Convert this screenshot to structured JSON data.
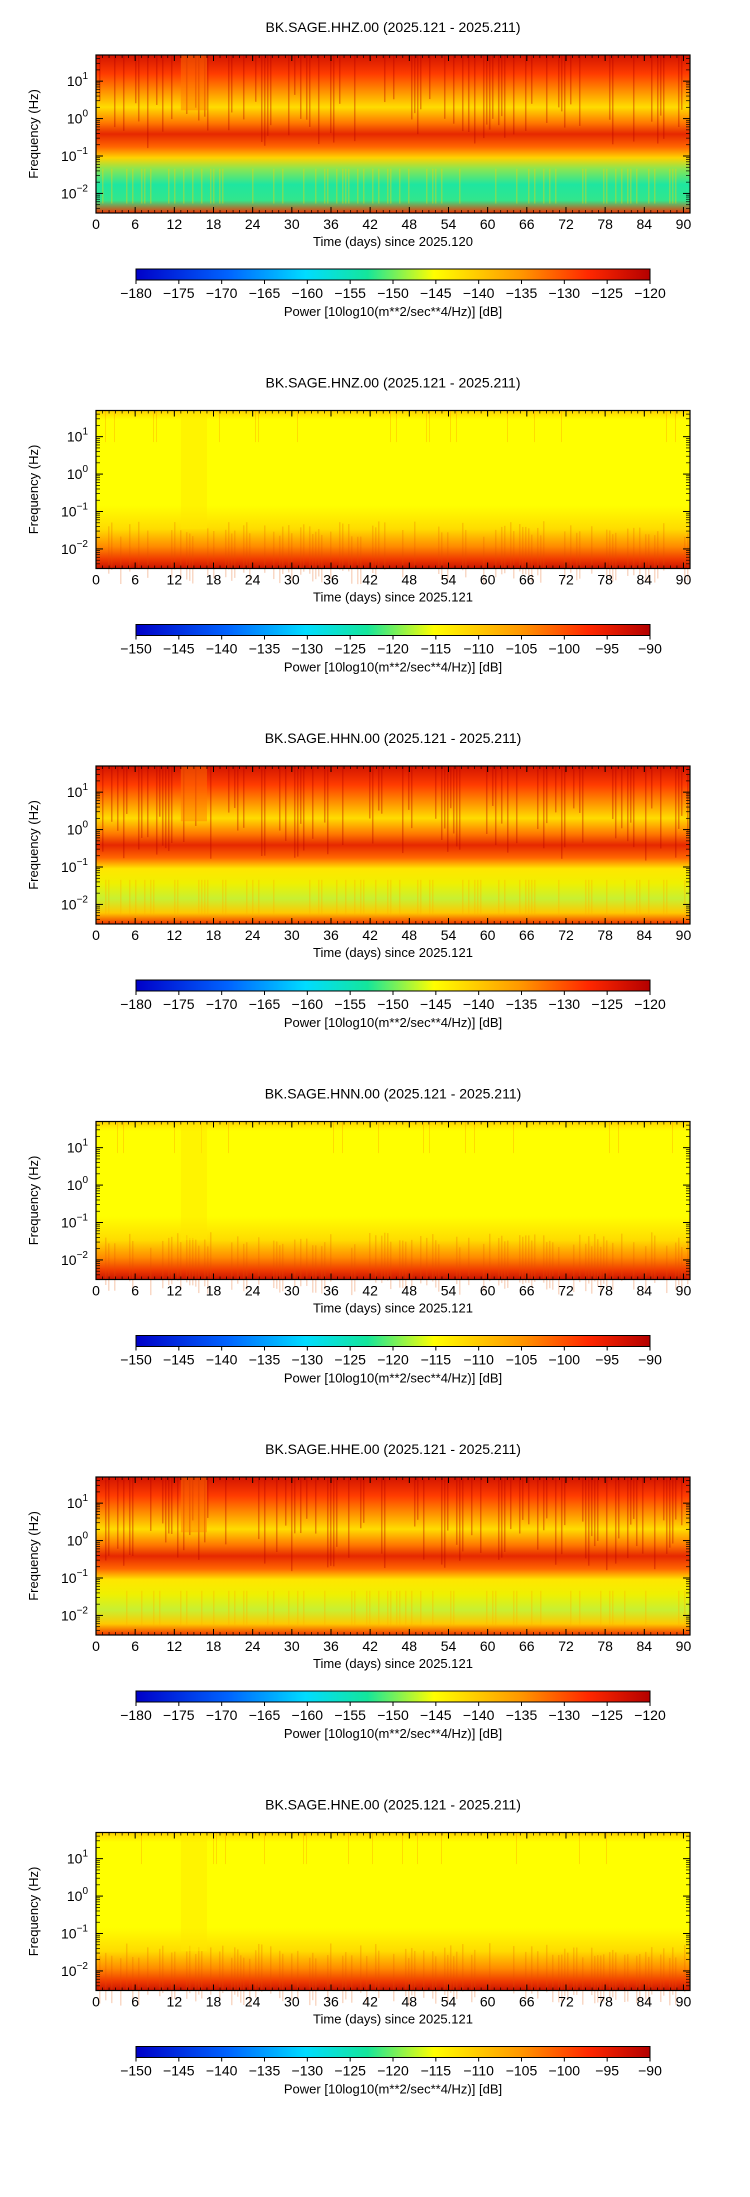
{
  "chart_data": [
    {
      "type": "heatmap",
      "title": "BK.SAGE.HHZ.00 (2025.121 - 2025.211)",
      "xlabel": "Time (days) since 2025.120",
      "ylabel": "Frequency (Hz)",
      "x_ticks": [
        "0",
        "6",
        "12",
        "18",
        "24",
        "30",
        "36",
        "42",
        "48",
        "54",
        "60",
        "66",
        "72",
        "78",
        "84",
        "90"
      ],
      "y_ticks": [
        "10^-2",
        "10^-1",
        "10^0",
        "10^1"
      ],
      "y_scale": "log",
      "ylim": [
        0.003,
        50
      ],
      "xlim": [
        0,
        91
      ],
      "colorbar": {
        "label": "Power [10log10(m**2/sec**4/Hz)] [dB]",
        "ticks": [
          "−180",
          "−175",
          "−170",
          "−165",
          "−160",
          "−155",
          "−150",
          "−145",
          "−140",
          "−135",
          "−130",
          "−125",
          "−120"
        ],
        "range": [
          -180,
          -120
        ],
        "colors": [
          "#0000c8",
          "#00dcff",
          "#14e69b",
          "#ffff00",
          "#ff5000",
          "#b40000"
        ]
      },
      "notes": "Strong microseism band near 0.1-0.3 Hz; low-power green band at 0.01-0.05 Hz."
    },
    {
      "type": "heatmap",
      "title": "BK.SAGE.HNZ.00 (2025.121 - 2025.211)",
      "xlabel": "Time (days) since 2025.121",
      "ylabel": "Frequency (Hz)",
      "x_ticks": [
        "0",
        "6",
        "12",
        "18",
        "24",
        "30",
        "36",
        "42",
        "48",
        "54",
        "60",
        "66",
        "72",
        "78",
        "84",
        "90"
      ],
      "y_ticks": [
        "10^-2",
        "10^-1",
        "10^0",
        "10^1"
      ],
      "y_scale": "log",
      "ylim": [
        0.003,
        50
      ],
      "xlim": [
        0,
        91
      ],
      "colorbar": {
        "label": "Power [10log10(m**2/sec**4/Hz)] [dB]",
        "ticks": [
          "−150",
          "−145",
          "−140",
          "−135",
          "−130",
          "−125",
          "−120",
          "−115",
          "−110",
          "−105",
          "−100",
          "−95",
          "−90"
        ],
        "range": [
          -150,
          -90
        ],
        "colors": [
          "#0000c8",
          "#00dcff",
          "#14e69b",
          "#ffff00",
          "#ff5000",
          "#b40000"
        ]
      },
      "notes": "Mostly uniform yellow; red at lowest frequencies."
    },
    {
      "type": "heatmap",
      "title": "BK.SAGE.HHN.00 (2025.121 - 2025.211)",
      "xlabel": "Time (days) since 2025.121",
      "ylabel": "Frequency (Hz)",
      "x_ticks": [
        "0",
        "6",
        "12",
        "18",
        "24",
        "30",
        "36",
        "42",
        "48",
        "54",
        "60",
        "66",
        "72",
        "78",
        "84",
        "90"
      ],
      "y_ticks": [
        "10^-2",
        "10^-1",
        "10^0",
        "10^1"
      ],
      "y_scale": "log",
      "ylim": [
        0.003,
        50
      ],
      "xlim": [
        0,
        91
      ],
      "colorbar": {
        "label": "Power [10log10(m**2/sec**4/Hz)] [dB]",
        "ticks": [
          "−180",
          "−175",
          "−170",
          "−165",
          "−160",
          "−155",
          "−150",
          "−145",
          "−140",
          "−135",
          "−130",
          "−125",
          "−120"
        ],
        "range": [
          -180,
          -120
        ],
        "colors": [
          "#0000c8",
          "#00dcff",
          "#14e69b",
          "#ffff00",
          "#ff5000",
          "#b40000"
        ]
      },
      "notes": "Microseism band near 0.1-0.3 Hz; yellow-green low frequency band."
    },
    {
      "type": "heatmap",
      "title": "BK.SAGE.HNN.00 (2025.121 - 2025.211)",
      "xlabel": "Time (days) since 2025.121",
      "ylabel": "Frequency (Hz)",
      "x_ticks": [
        "0",
        "6",
        "12",
        "18",
        "24",
        "30",
        "36",
        "42",
        "48",
        "54",
        "60",
        "66",
        "72",
        "78",
        "84",
        "90"
      ],
      "y_ticks": [
        "10^-2",
        "10^-1",
        "10^0",
        "10^1"
      ],
      "y_scale": "log",
      "ylim": [
        0.003,
        50
      ],
      "xlim": [
        0,
        91
      ],
      "colorbar": {
        "label": "Power [10log10(m**2/sec**4/Hz)] [dB]",
        "ticks": [
          "−150",
          "−145",
          "−140",
          "−135",
          "−130",
          "−125",
          "−120",
          "−115",
          "−110",
          "−105",
          "−100",
          "−95",
          "−90"
        ],
        "range": [
          -150,
          -90
        ],
        "colors": [
          "#0000c8",
          "#00dcff",
          "#14e69b",
          "#ffff00",
          "#ff5000",
          "#b40000"
        ]
      },
      "notes": "Mostly uniform yellow; red at lowest frequencies."
    },
    {
      "type": "heatmap",
      "title": "BK.SAGE.HHE.00 (2025.121 - 2025.211)",
      "xlabel": "Time (days) since 2025.121",
      "ylabel": "Frequency (Hz)",
      "x_ticks": [
        "0",
        "6",
        "12",
        "18",
        "24",
        "30",
        "36",
        "42",
        "48",
        "54",
        "60",
        "66",
        "72",
        "78",
        "84",
        "90"
      ],
      "y_ticks": [
        "10^-2",
        "10^-1",
        "10^0",
        "10^1"
      ],
      "y_scale": "log",
      "ylim": [
        0.003,
        50
      ],
      "xlim": [
        0,
        91
      ],
      "colorbar": {
        "label": "Power [10log10(m**2/sec**4/Hz)] [dB]",
        "ticks": [
          "−180",
          "−175",
          "−170",
          "−165",
          "−160",
          "−155",
          "−150",
          "−145",
          "−140",
          "−135",
          "−130",
          "−125",
          "−120"
        ],
        "range": [
          -180,
          -120
        ],
        "colors": [
          "#0000c8",
          "#00dcff",
          "#14e69b",
          "#ffff00",
          "#ff5000",
          "#b40000"
        ]
      },
      "notes": "Microseism band near 0.1-0.3 Hz; yellow-green low frequency band."
    },
    {
      "type": "heatmap",
      "title": "BK.SAGE.HNE.00 (2025.121 - 2025.211)",
      "xlabel": "Time (days) since 2025.121",
      "ylabel": "Frequency (Hz)",
      "x_ticks": [
        "0",
        "6",
        "12",
        "18",
        "24",
        "30",
        "36",
        "42",
        "48",
        "54",
        "60",
        "66",
        "72",
        "78",
        "84",
        "90"
      ],
      "y_ticks": [
        "10^-2",
        "10^-1",
        "10^0",
        "10^1"
      ],
      "y_scale": "log",
      "ylim": [
        0.003,
        50
      ],
      "xlim": [
        0,
        91
      ],
      "colorbar": {
        "label": "Power [10log10(m**2/sec**4/Hz)] [dB]",
        "ticks": [
          "−150",
          "−145",
          "−140",
          "−135",
          "−130",
          "−125",
          "−120",
          "−115",
          "−110",
          "−105",
          "−100",
          "−95",
          "−90"
        ],
        "range": [
          -150,
          -90
        ],
        "colors": [
          "#0000c8",
          "#00dcff",
          "#14e69b",
          "#ffff00",
          "#ff5000",
          "#b40000"
        ]
      },
      "notes": "Mostly uniform yellow; red at lowest frequencies."
    }
  ]
}
